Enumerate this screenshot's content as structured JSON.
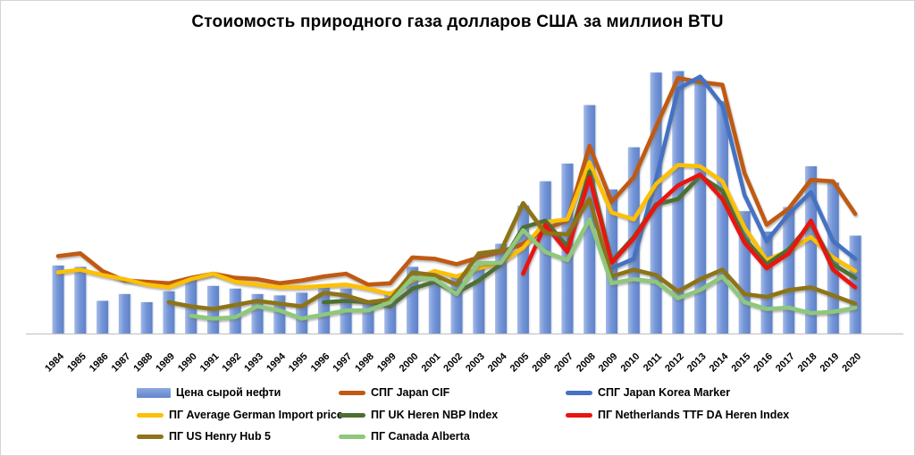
{
  "chart_data": {
    "type": "combo-bar-line",
    "title": "Стоиомость природного газа  долларов США за миллион BTU",
    "unit": "USD per million BTU",
    "xlabel": "",
    "ylabel": "",
    "ylim": [
      0,
      20
    ],
    "grid": false,
    "y_axis_visible": false,
    "legend_position": "bottom",
    "categories": [
      1984,
      1985,
      1986,
      1987,
      1988,
      1989,
      1990,
      1991,
      1992,
      1993,
      1994,
      1995,
      1996,
      1997,
      1998,
      1999,
      2000,
      2001,
      2002,
      2003,
      2004,
      2005,
      2006,
      2007,
      2008,
      2009,
      2010,
      2011,
      2012,
      2013,
      2014,
      2015,
      2016,
      2017,
      2018,
      2019,
      2020
    ],
    "series": [
      {
        "name": "Цена сырой нефти",
        "type": "bar",
        "color": "#7394d6",
        "values": [
          5.0,
          4.9,
          2.4,
          2.9,
          2.3,
          3.1,
          4.0,
          3.5,
          3.3,
          2.9,
          2.8,
          3.0,
          3.6,
          3.3,
          2.2,
          3.1,
          4.9,
          4.2,
          4.3,
          5.0,
          6.6,
          9.4,
          11.2,
          12.5,
          16.8,
          10.6,
          13.7,
          19.2,
          19.3,
          18.7,
          17.1,
          9.0,
          7.5,
          9.3,
          12.3,
          11.1,
          7.2
        ]
      },
      {
        "name": "СПГ Japan CIF",
        "type": "line",
        "color": "#c05a12",
        "values": [
          5.7,
          5.9,
          4.6,
          3.9,
          3.8,
          3.7,
          4.1,
          4.4,
          4.1,
          4.0,
          3.7,
          3.9,
          4.2,
          4.4,
          3.6,
          3.7,
          5.6,
          5.5,
          5.1,
          5.6,
          6.0,
          6.6,
          7.7,
          8.3,
          13.8,
          9.7,
          11.5,
          15.2,
          18.8,
          18.5,
          18.3,
          11.8,
          8.0,
          9.2,
          11.3,
          11.2,
          8.8
        ]
      },
      {
        "name": "СПГ Japan Korea Marker",
        "type": "line",
        "color": "#4472c4",
        "values": [
          null,
          null,
          null,
          null,
          null,
          null,
          null,
          null,
          null,
          null,
          null,
          null,
          null,
          null,
          null,
          null,
          null,
          null,
          null,
          null,
          null,
          null,
          null,
          null,
          null,
          4.8,
          5.5,
          11.3,
          18.0,
          18.9,
          16.8,
          10.2,
          6.8,
          8.8,
          10.4,
          6.8,
          5.5
        ]
      },
      {
        "name": "ПГ Average German Import price",
        "type": "line",
        "color": "#fcc006",
        "values": [
          4.5,
          4.7,
          4.3,
          4.0,
          3.6,
          3.4,
          4.0,
          4.4,
          3.8,
          3.6,
          3.4,
          3.4,
          3.5,
          3.6,
          3.3,
          2.9,
          3.9,
          4.6,
          4.2,
          4.8,
          5.2,
          6.3,
          8.2,
          8.4,
          12.6,
          8.9,
          8.4,
          11.0,
          12.4,
          12.3,
          11.2,
          7.8,
          5.4,
          6.1,
          7.1,
          5.6,
          4.6
        ]
      },
      {
        "name": "ПГ UK Heren NBP Index",
        "type": "line",
        "color": "#4c7031",
        "values": [
          null,
          null,
          null,
          null,
          null,
          null,
          null,
          null,
          null,
          null,
          null,
          null,
          2.3,
          2.4,
          2.3,
          2.0,
          3.3,
          3.8,
          3.0,
          3.9,
          5.1,
          7.8,
          8.3,
          6.4,
          11.9,
          5.3,
          7.1,
          9.5,
          9.9,
          11.6,
          10.5,
          7.0,
          5.1,
          6.2,
          8.1,
          5.1,
          4.1
        ]
      },
      {
        "name": "ПГ Netherlands TTF DA Heren Index",
        "type": "line",
        "color": "#ea1410",
        "values": [
          null,
          null,
          null,
          null,
          null,
          null,
          null,
          null,
          null,
          null,
          null,
          null,
          null,
          null,
          null,
          null,
          null,
          null,
          null,
          null,
          null,
          4.4,
          8.0,
          6.0,
          11.5,
          5.2,
          7.0,
          9.4,
          10.9,
          11.7,
          9.9,
          6.7,
          4.8,
          5.9,
          8.3,
          4.7,
          3.4
        ]
      },
      {
        "name": "ПГ US Henry Hub 5",
        "type": "line",
        "color": "#8d7417",
        "values": [
          null,
          null,
          null,
          null,
          null,
          2.3,
          2.0,
          1.8,
          2.1,
          2.4,
          2.2,
          2.0,
          3.0,
          2.8,
          2.3,
          2.5,
          4.5,
          4.3,
          3.6,
          5.9,
          6.1,
          9.6,
          7.4,
          7.3,
          9.9,
          4.2,
          4.7,
          4.3,
          3.1,
          4.0,
          4.7,
          2.9,
          2.7,
          3.2,
          3.4,
          2.8,
          2.2
        ]
      },
      {
        "name": "ПГ Canada Alberta",
        "type": "line",
        "color": "#8ec87c",
        "values": [
          null,
          null,
          null,
          null,
          null,
          null,
          1.3,
          1.1,
          1.2,
          2.0,
          1.7,
          1.1,
          1.4,
          1.7,
          1.7,
          2.3,
          4.1,
          4.0,
          2.9,
          5.2,
          5.2,
          7.6,
          6.0,
          5.4,
          8.4,
          3.7,
          4.0,
          3.8,
          2.6,
          3.2,
          4.2,
          2.3,
          1.8,
          1.9,
          1.5,
          1.6,
          1.9
        ]
      }
    ]
  },
  "legend": {
    "marker_note": "first item = bar swatch, others = line swatches"
  }
}
